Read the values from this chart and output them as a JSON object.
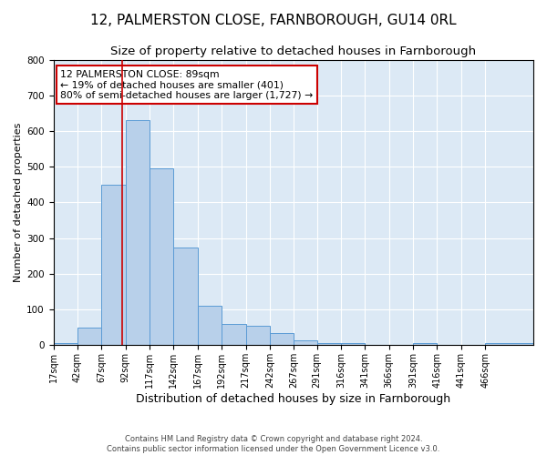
{
  "title1": "12, PALMERSTON CLOSE, FARNBOROUGH, GU14 0RL",
  "title2": "Size of property relative to detached houses in Farnborough",
  "xlabel": "Distribution of detached houses by size in Farnborough",
  "ylabel": "Number of detached properties",
  "footer1": "Contains HM Land Registry data © Crown copyright and database right 2024.",
  "footer2": "Contains public sector information licensed under the Open Government Licence v3.0.",
  "bar_values": [
    5,
    50,
    450,
    630,
    495,
    275,
    110,
    60,
    55,
    35,
    15,
    5,
    5,
    0,
    0,
    5,
    0,
    0,
    5
  ],
  "bin_edges": [
    17,
    42,
    67,
    92,
    117,
    142,
    167,
    192,
    217,
    242,
    267,
    291,
    316,
    341,
    366,
    391,
    416,
    441,
    466,
    516
  ],
  "bar_color": "#b8d0ea",
  "bar_edge_color": "#5b9bd5",
  "property_size": 89,
  "property_line_color": "#cc0000",
  "annotation_text": "12 PALMERSTON CLOSE: 89sqm\n← 19% of detached houses are smaller (401)\n80% of semi-detached houses are larger (1,727) →",
  "annotation_box_color": "#ffffff",
  "annotation_box_edge": "#cc0000",
  "ylim": [
    0,
    800
  ],
  "yticks": [
    0,
    100,
    200,
    300,
    400,
    500,
    600,
    700,
    800
  ],
  "plot_background": "#dce9f5",
  "grid_color": "#ffffff",
  "title1_fontsize": 11,
  "title2_fontsize": 9.5,
  "xlabel_fontsize": 9,
  "ylabel_fontsize": 8,
  "tick_label_fontsize": 7
}
